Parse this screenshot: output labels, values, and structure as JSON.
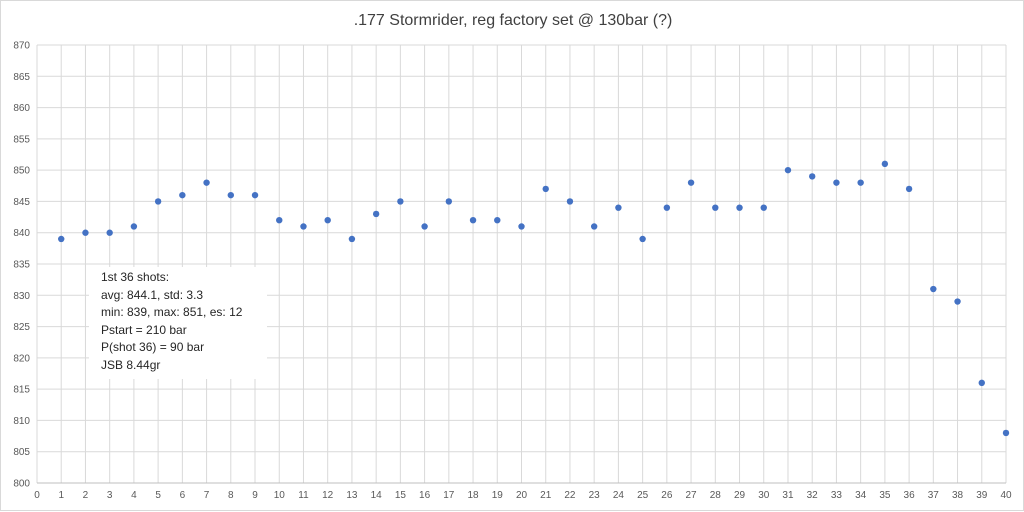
{
  "chart_data": {
    "type": "scatter",
    "title": ".177 Stormrider, reg factory set @ 130bar (?)",
    "xlabel": "",
    "ylabel": "",
    "xlim": [
      0,
      40
    ],
    "ylim": [
      800,
      870
    ],
    "x_ticks": [
      "0",
      "1",
      "2",
      "3",
      "4",
      "5",
      "6",
      "7",
      "8",
      "9",
      "10",
      "11",
      "12",
      "13",
      "14",
      "15",
      "16",
      "17",
      "18",
      "19",
      "20",
      "21",
      "22",
      "23",
      "24",
      "25",
      "26",
      "27",
      "28",
      "29",
      "30",
      "31",
      "32",
      "33",
      "34",
      "35",
      "36",
      "37",
      "38",
      "39",
      "40"
    ],
    "y_ticks": [
      "800",
      "805",
      "810",
      "815",
      "820",
      "825",
      "830",
      "835",
      "840",
      "845",
      "850",
      "855",
      "860",
      "865",
      "870"
    ],
    "grid": true,
    "marker_color": "#4472c4",
    "gridline_color": "#d9d9d9",
    "series": [
      {
        "x": [
          1,
          2,
          3,
          4,
          5,
          6,
          7,
          8,
          9,
          10,
          11,
          12,
          13,
          14,
          15,
          16,
          17,
          18,
          19,
          20,
          21,
          22,
          23,
          24,
          25,
          26,
          27,
          28,
          29,
          30,
          31,
          32,
          33,
          34,
          35,
          36,
          37,
          38,
          39,
          40
        ],
        "y": [
          839,
          840,
          840,
          841,
          845,
          846,
          848,
          846,
          846,
          842,
          841,
          842,
          839,
          843,
          845,
          841,
          845,
          842,
          842,
          841,
          847,
          845,
          841,
          844,
          839,
          844,
          848,
          844,
          844,
          844,
          850,
          849,
          848,
          848,
          851,
          847,
          831,
          829,
          816,
          808
        ]
      }
    ],
    "annotation": [
      "1st 36 shots:",
      "avg: 844.1, std: 3.3",
      "min: 839, max: 851, es: 12",
      "Pstart = 210 bar",
      "P(shot 36) = 90 bar",
      "JSB 8.44gr"
    ]
  }
}
